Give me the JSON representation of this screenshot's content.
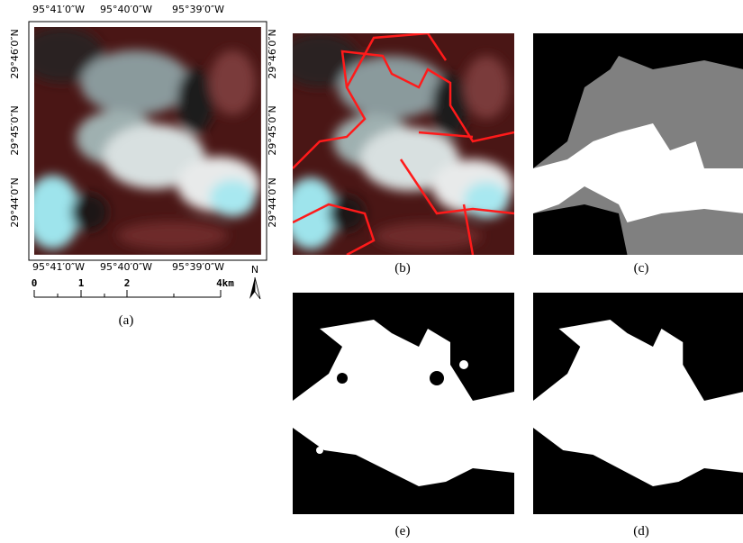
{
  "panel_a": {
    "top_labels": [
      "95°41′0″W",
      "95°40′0″W",
      "95°39′0″W"
    ],
    "bottom_labels": [
      "95°41′0″W",
      "95°40′0″W",
      "95°39′0″W"
    ],
    "left_labels": [
      "29°46′0″N",
      "29°45′0″N",
      "29°44′0″N"
    ],
    "right_labels": [
      "29°46′0″N",
      "29°45′0″N",
      "29°44′0″N"
    ],
    "scale_labels": [
      "0",
      "1",
      "2",
      "4km"
    ],
    "north": "N",
    "caption": "(a)"
  },
  "panels": [
    {
      "caption": "(b)"
    },
    {
      "caption": "(c)"
    },
    {
      "caption": "(e)"
    },
    {
      "caption": "(d)"
    }
  ]
}
